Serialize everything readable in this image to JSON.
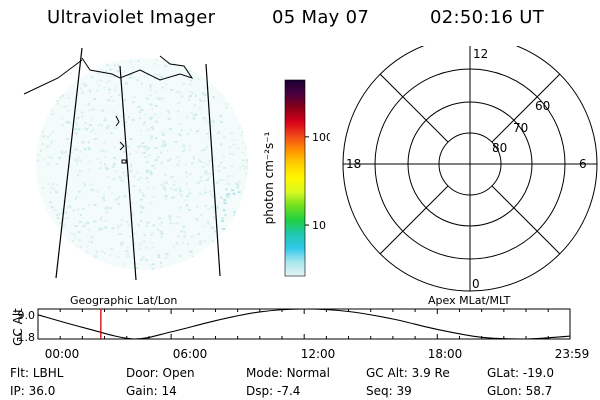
{
  "header": {
    "title": "Ultraviolet Imager",
    "date": "05 May 07",
    "time": "02:50:16 UT"
  },
  "colorbar": {
    "unit_label": "photon cm⁻²s⁻¹",
    "ticks": [
      {
        "label": "100",
        "frac": 0.29
      },
      {
        "label": "10",
        "frac": 0.74
      }
    ],
    "colors": [
      "#1a0033",
      "#4a0040",
      "#8a0018",
      "#d8001a",
      "#f04818",
      "#ff9000",
      "#ffd000",
      "#fff800",
      "#d8f820",
      "#70e020",
      "#20d040",
      "#20c8b0",
      "#30c8e8",
      "#a8e8ee",
      "#e6f4f6"
    ]
  },
  "polar": {
    "lat_labels": [
      "60",
      "70",
      "80"
    ],
    "mlt_labels": [
      "12",
      "18",
      "6",
      "0"
    ]
  },
  "labels": {
    "geographic": "Geographic Lat/Lon",
    "apex": "Apex MLat/MLT"
  },
  "altitude_plot": {
    "ylabel": "GC Alt",
    "y_ticks": [
      "9.0",
      "1.8"
    ],
    "x_ticks": [
      "00:00",
      "06:00",
      "12:00",
      "18:00",
      "23:59"
    ],
    "chart_data": {
      "type": "line",
      "title": "",
      "xlabel": "",
      "ylabel": "GC Alt",
      "ylim": [
        1.8,
        9.0
      ],
      "x": [
        "00:00",
        "02:00",
        "04:18",
        "06:00",
        "08:00",
        "10:00",
        "12:00",
        "14:00",
        "16:00",
        "18:00",
        "20:00",
        "22:00",
        "23:30",
        "23:59"
      ],
      "values": [
        7.6,
        4.6,
        1.8,
        3.5,
        6.2,
        8.3,
        9.0,
        8.4,
        6.6,
        4.1,
        2.2,
        1.8,
        2.3,
        2.5
      ],
      "current_time_marker": "02:50"
    }
  },
  "status": {
    "row1": [
      {
        "label": "Flt:",
        "value": "LBHL"
      },
      {
        "label": "Door:",
        "value": "Open"
      },
      {
        "label": "Mode:",
        "value": "Normal"
      },
      {
        "label": "GC Alt:",
        "value": "3.9 Re"
      },
      {
        "label": "GLat:",
        "value": "-19.0"
      }
    ],
    "row2": [
      {
        "label": "IP:",
        "value": "36.0"
      },
      {
        "label": "Gain:",
        "value": "14"
      },
      {
        "label": "Dsp:",
        "value": "-7.4"
      },
      {
        "label": "Seq:",
        "value": "39"
      },
      {
        "label": "GLon:",
        "value": "58.7"
      }
    ]
  }
}
